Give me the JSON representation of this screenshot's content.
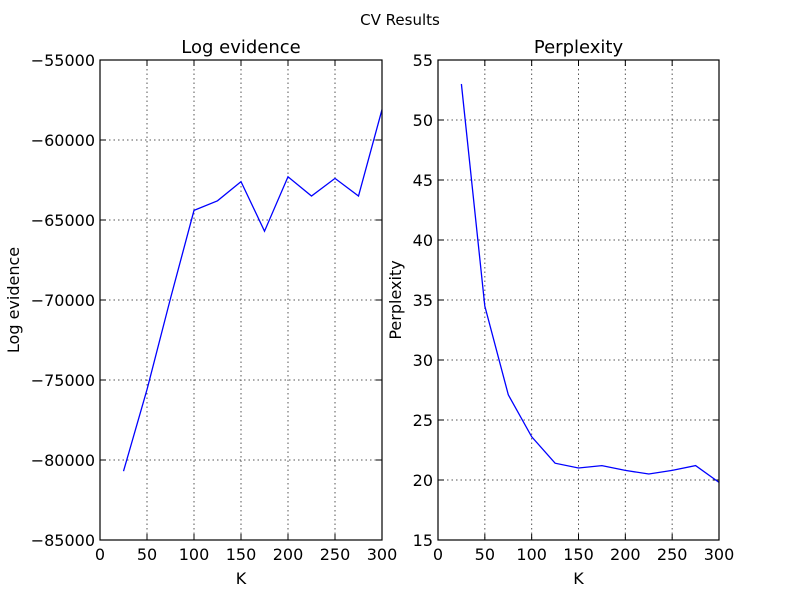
{
  "figure": {
    "suptitle": "CV Results"
  },
  "chart_data": [
    {
      "type": "line",
      "title": "Log evidence",
      "xlabel": "K",
      "ylabel": "Log evidence",
      "xlim": [
        0,
        300
      ],
      "ylim": [
        -85000,
        -55000
      ],
      "xticks": [
        0,
        50,
        100,
        150,
        200,
        250,
        300
      ],
      "yticks": [
        -85000,
        -80000,
        -75000,
        -70000,
        -65000,
        -60000,
        -55000
      ],
      "xtick_labels": [
        "0",
        "50",
        "100",
        "150",
        "200",
        "250",
        "300"
      ],
      "ytick_labels": [
        "−85000",
        "−80000",
        "−75000",
        "−70000",
        "−65000",
        "−60000",
        "−55000"
      ],
      "grid": true,
      "series": [
        {
          "color": "#0000ff",
          "x": [
            25,
            50,
            75,
            100,
            125,
            150,
            175,
            200,
            225,
            250,
            275,
            300
          ],
          "y": [
            -80700,
            -75600,
            -69900,
            -64400,
            -63800,
            -62600,
            -65700,
            -62300,
            -63500,
            -62400,
            -63500,
            -58100
          ]
        }
      ]
    },
    {
      "type": "line",
      "title": "Perplexity",
      "xlabel": "K",
      "ylabel": "Perplexity",
      "xlim": [
        0,
        300
      ],
      "ylim": [
        15,
        55
      ],
      "xticks": [
        0,
        50,
        100,
        150,
        200,
        250,
        300
      ],
      "yticks": [
        15,
        20,
        25,
        30,
        35,
        40,
        45,
        50,
        55
      ],
      "xtick_labels": [
        "0",
        "50",
        "100",
        "150",
        "200",
        "250",
        "300"
      ],
      "ytick_labels": [
        "15",
        "20",
        "25",
        "30",
        "35",
        "40",
        "45",
        "50",
        "55"
      ],
      "grid": true,
      "series": [
        {
          "color": "#0000ff",
          "x": [
            25,
            50,
            75,
            100,
            125,
            150,
            175,
            200,
            225,
            250,
            275,
            300
          ],
          "y": [
            53.0,
            34.5,
            27.1,
            23.6,
            21.4,
            21.0,
            21.2,
            20.8,
            20.5,
            20.8,
            21.2,
            19.8
          ]
        }
      ]
    }
  ]
}
